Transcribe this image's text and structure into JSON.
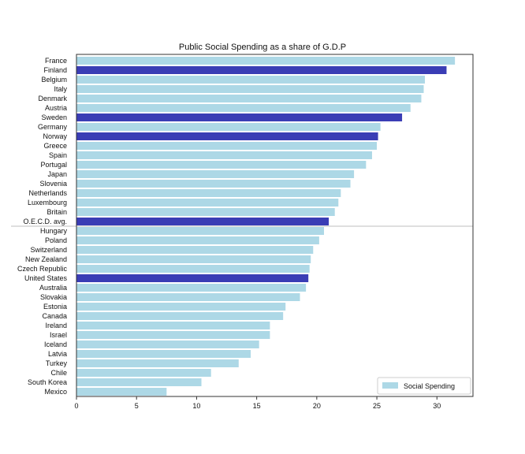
{
  "chart_data": {
    "type": "bar",
    "orientation": "horizontal",
    "title": "Public Social Spending as a share of G.D.P",
    "xlabel": "",
    "ylabel": "",
    "xlim": [
      0,
      33
    ],
    "x_ticks": [
      0,
      5,
      10,
      15,
      20,
      25,
      30
    ],
    "grid": false,
    "legend_position": "bottom-right",
    "series": [
      {
        "name": "Social Spending",
        "color": "#add8e6"
      }
    ],
    "highlight_color": "#3a3db5",
    "categories": [
      "France",
      "Finland",
      "Belgium",
      "Italy",
      "Denmark",
      "Austria",
      "Sweden",
      "Germany",
      "Norway",
      "Greece",
      "Spain",
      "Portugal",
      "Japan",
      "Slovenia",
      "Netherlands",
      "Luxembourg",
      "Britain",
      "O.E.C.D. avg.",
      "Hungary",
      "Poland",
      "Switzerland",
      "New Zealand",
      "Czech Republic",
      "United States",
      "Australia",
      "Slovakia",
      "Estonia",
      "Canada",
      "Ireland",
      "Israel",
      "Iceland",
      "Latvia",
      "Turkey",
      "Chile",
      "South Korea",
      "Mexico"
    ],
    "values": [
      31.5,
      30.8,
      29.0,
      28.9,
      28.7,
      27.8,
      27.1,
      25.3,
      25.1,
      25.0,
      24.6,
      24.1,
      23.1,
      22.8,
      22.0,
      21.8,
      21.5,
      21.0,
      20.6,
      20.2,
      19.7,
      19.5,
      19.4,
      19.3,
      19.1,
      18.6,
      17.4,
      17.2,
      16.1,
      16.1,
      15.2,
      14.5,
      13.5,
      11.2,
      10.4,
      7.5
    ],
    "highlighted": [
      "Finland",
      "Sweden",
      "Norway",
      "O.E.C.D. avg.",
      "United States"
    ],
    "reference_line_after": "O.E.C.D. avg."
  }
}
